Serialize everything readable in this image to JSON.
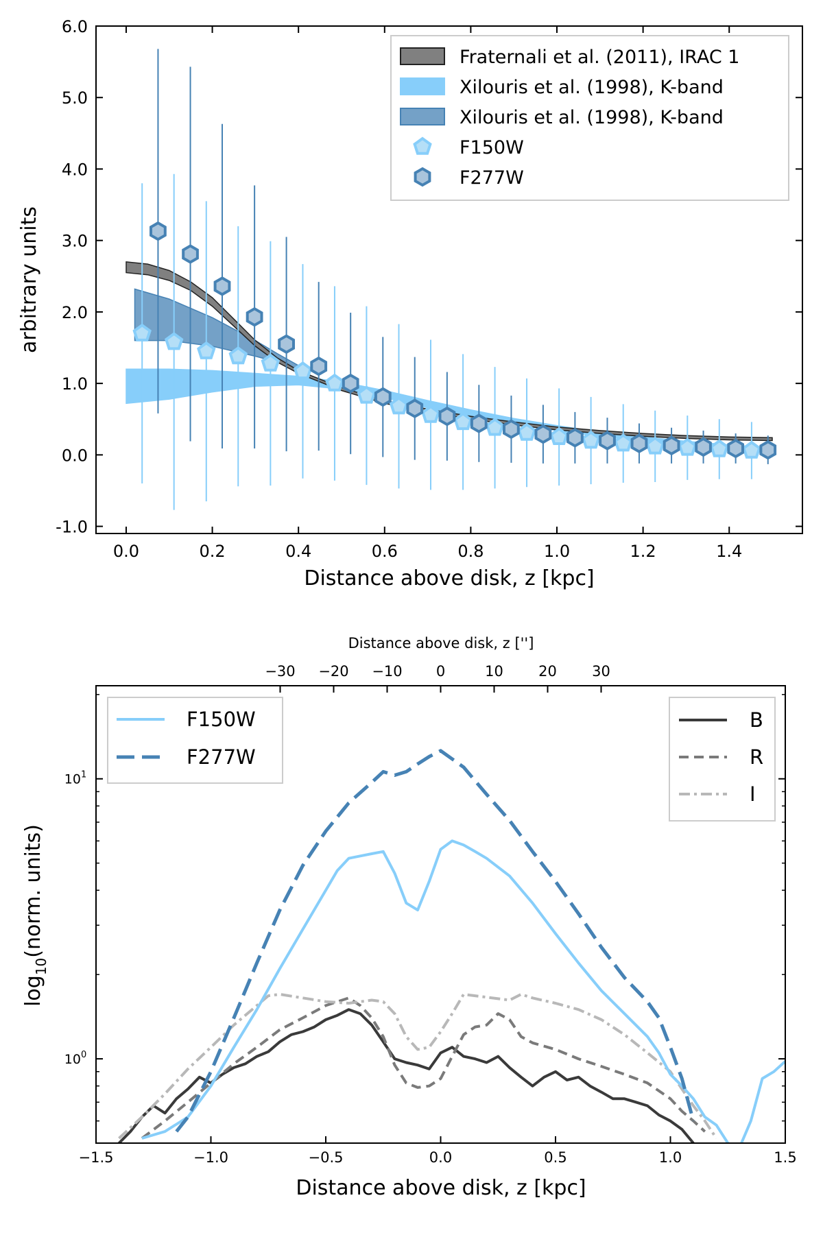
{
  "colors": {
    "light_blue": "#87cefa",
    "mid_blue": "#4682b4",
    "gray_fill": "#808080",
    "b_line": "#3a3a3a",
    "r_line": "#7a7a7a",
    "i_line": "#b8b8b8"
  },
  "chart_data": [
    {
      "type": "line",
      "title": "",
      "xlabel": "Distance above disk, z [kpc]",
      "ylabel": "arbitrary units",
      "xlim": [
        -0.07,
        1.57
      ],
      "ylim": [
        -1.1,
        6.0
      ],
      "x_ticks": [
        0.0,
        0.2,
        0.4,
        0.6,
        0.8,
        1.0,
        1.2,
        1.4
      ],
      "x_tick_labels": [
        "0.0",
        "0.2",
        "0.4",
        "0.6",
        "0.8",
        "1.0",
        "1.2",
        "1.4"
      ],
      "y_ticks": [
        -1.0,
        0.0,
        1.0,
        2.0,
        3.0,
        4.0,
        5.0,
        6.0
      ],
      "y_tick_labels": [
        "-1.0",
        "0.0",
        "1.0",
        "2.0",
        "3.0",
        "4.0",
        "5.0",
        "6.0"
      ],
      "legend_position": "top-right",
      "bands": [
        {
          "name": "Fraternali et al. (2011), IRAC 1",
          "color": "#808080",
          "x": [
            0.0,
            0.05,
            0.1,
            0.15,
            0.2,
            0.25,
            0.3,
            0.35,
            0.4,
            0.5,
            0.6,
            0.7,
            0.8,
            0.9,
            1.0,
            1.1,
            1.2,
            1.3,
            1.4,
            1.5
          ],
          "lower": [
            2.55,
            2.52,
            2.44,
            2.3,
            2.08,
            1.8,
            1.52,
            1.3,
            1.14,
            0.9,
            0.72,
            0.6,
            0.5,
            0.42,
            0.35,
            0.3,
            0.26,
            0.23,
            0.21,
            0.2
          ],
          "upper": [
            2.7,
            2.67,
            2.58,
            2.42,
            2.2,
            1.9,
            1.6,
            1.36,
            1.18,
            0.94,
            0.76,
            0.64,
            0.54,
            0.46,
            0.39,
            0.34,
            0.3,
            0.27,
            0.25,
            0.24
          ]
        },
        {
          "name": "Xilouris et al. (1998), K-band",
          "color": "#87cefa",
          "x": [
            0.0,
            0.1,
            0.2,
            0.3,
            0.4,
            0.5,
            0.6,
            0.7,
            0.8,
            0.9,
            1.0,
            1.1,
            1.2,
            1.3,
            1.4,
            1.5
          ],
          "lower": [
            0.72,
            0.78,
            0.88,
            0.96,
            0.98,
            0.92,
            0.8,
            0.66,
            0.54,
            0.43,
            0.34,
            0.26,
            0.2,
            0.15,
            0.11,
            0.08
          ],
          "upper": [
            1.2,
            1.2,
            1.18,
            1.14,
            1.1,
            1.02,
            0.9,
            0.76,
            0.63,
            0.51,
            0.41,
            0.32,
            0.25,
            0.19,
            0.14,
            0.1
          ]
        },
        {
          "name": "Xilouris et al. (1998), K-band",
          "color": "#4682b4",
          "x": [
            0.02,
            0.1,
            0.2,
            0.3,
            0.35,
            0.4
          ],
          "lower": [
            1.6,
            1.6,
            1.52,
            1.38,
            1.3,
            1.2
          ],
          "upper": [
            2.32,
            2.18,
            1.92,
            1.6,
            1.42,
            1.25
          ]
        }
      ],
      "series": [
        {
          "name": "F150W",
          "marker": "pentagon",
          "color": "#87cefa",
          "x": [
            0.037,
            0.111,
            0.186,
            0.26,
            0.335,
            0.41,
            0.484,
            0.558,
            0.633,
            0.707,
            0.782,
            0.856,
            0.93,
            1.005,
            1.079,
            1.154,
            1.228,
            1.303,
            1.377,
            1.452
          ],
          "y": [
            1.7,
            1.58,
            1.45,
            1.38,
            1.28,
            1.17,
            1.0,
            0.83,
            0.68,
            0.56,
            0.46,
            0.38,
            0.31,
            0.25,
            0.2,
            0.16,
            0.12,
            0.1,
            0.08,
            0.06
          ],
          "err": [
            2.1,
            2.35,
            2.1,
            1.82,
            1.71,
            1.5,
            1.36,
            1.25,
            1.15,
            1.05,
            0.95,
            0.85,
            0.76,
            0.68,
            0.61,
            0.55,
            0.5,
            0.45,
            0.42,
            0.4
          ]
        },
        {
          "name": "F277W",
          "marker": "hexagon",
          "color": "#4682b4",
          "x": [
            0.074,
            0.149,
            0.223,
            0.298,
            0.372,
            0.447,
            0.521,
            0.596,
            0.67,
            0.745,
            0.819,
            0.894,
            0.968,
            1.042,
            1.117,
            1.191,
            1.266,
            1.34,
            1.415,
            1.49
          ],
          "y": [
            3.13,
            2.81,
            2.36,
            1.93,
            1.55,
            1.24,
            1.0,
            0.81,
            0.65,
            0.54,
            0.44,
            0.36,
            0.29,
            0.24,
            0.2,
            0.16,
            0.13,
            0.11,
            0.09,
            0.07
          ],
          "err": [
            2.55,
            2.62,
            2.27,
            1.84,
            1.5,
            1.18,
            0.99,
            0.84,
            0.72,
            0.62,
            0.54,
            0.47,
            0.41,
            0.36,
            0.32,
            0.28,
            0.25,
            0.23,
            0.21,
            0.2
          ]
        }
      ]
    },
    {
      "type": "line",
      "title": "",
      "xlabel": "Distance above disk, z [kpc]",
      "ylabel": "log10(norm. units)",
      "ylabel_main": "log",
      "ylabel_sub": "10",
      "ylabel_tail": "(norm. units)",
      "top_xlabel": "Distance above disk, z ['']",
      "y_scale": "log",
      "xlim": [
        -1.5,
        1.5
      ],
      "ylim": [
        0.5,
        21.5
      ],
      "x_ticks": [
        -1.5,
        -1.0,
        -0.5,
        0.0,
        0.5,
        1.0,
        1.5
      ],
      "x_tick_labels": [
        "−1.5",
        "−1.0",
        "−0.5",
        "0.0",
        "0.5",
        "1.0",
        "1.5"
      ],
      "top_ticks": [
        -30,
        -20,
        -10,
        0,
        10,
        20,
        30
      ],
      "top_tick_labels": [
        "−30",
        "−20",
        "−10",
        "0",
        "10",
        "20",
        "30"
      ],
      "y_ticks": [
        1,
        10
      ],
      "y_tick_main": [
        "10",
        "10"
      ],
      "y_tick_exp": [
        "0",
        "1"
      ],
      "legend_left_position": "top-left",
      "legend_right_position": "top-right",
      "series": [
        {
          "name": "F150W",
          "style": "solid",
          "color": "#87cefa",
          "x": [
            -1.3,
            -1.2,
            -1.1,
            -1.0,
            -0.9,
            -0.8,
            -0.7,
            -0.6,
            -0.5,
            -0.45,
            -0.4,
            -0.35,
            -0.3,
            -0.25,
            -0.2,
            -0.15,
            -0.1,
            -0.05,
            0.0,
            0.05,
            0.1,
            0.15,
            0.2,
            0.3,
            0.4,
            0.5,
            0.6,
            0.7,
            0.8,
            0.9,
            0.95,
            1.0,
            1.05,
            1.1,
            1.15,
            1.2,
            1.25,
            1.3,
            1.35,
            1.4,
            1.45,
            1.5
          ],
          "y": [
            0.52,
            0.55,
            0.62,
            0.8,
            1.1,
            1.5,
            2.1,
            2.9,
            4.0,
            4.7,
            5.2,
            5.3,
            5.4,
            5.5,
            4.6,
            3.6,
            3.4,
            4.3,
            5.6,
            6.0,
            5.8,
            5.5,
            5.2,
            4.5,
            3.6,
            2.8,
            2.2,
            1.75,
            1.45,
            1.2,
            1.05,
            0.88,
            0.8,
            0.72,
            0.62,
            0.58,
            0.5,
            0.48,
            0.6,
            0.85,
            0.9,
            0.98
          ]
        },
        {
          "name": "F277W",
          "style": "dashed",
          "color": "#4682b4",
          "x": [
            -1.15,
            -1.1,
            -1.0,
            -0.9,
            -0.8,
            -0.7,
            -0.6,
            -0.5,
            -0.4,
            -0.3,
            -0.25,
            -0.2,
            -0.15,
            -0.1,
            -0.05,
            0.0,
            0.1,
            0.2,
            0.3,
            0.4,
            0.5,
            0.6,
            0.7,
            0.8,
            0.9,
            0.95,
            1.0,
            1.05,
            1.1
          ],
          "y": [
            0.55,
            0.62,
            0.9,
            1.4,
            2.2,
            3.4,
            4.9,
            6.5,
            8.2,
            9.7,
            10.6,
            10.3,
            10.6,
            11.3,
            12.0,
            12.6,
            11.0,
            8.8,
            7.1,
            5.5,
            4.3,
            3.3,
            2.5,
            1.95,
            1.6,
            1.4,
            1.1,
            0.85,
            0.6
          ]
        },
        {
          "name": "B",
          "style": "solid",
          "color": "#3a3a3a",
          "x": [
            -1.4,
            -1.35,
            -1.3,
            -1.25,
            -1.2,
            -1.15,
            -1.1,
            -1.05,
            -1.0,
            -0.95,
            -0.9,
            -0.85,
            -0.8,
            -0.75,
            -0.7,
            -0.65,
            -0.6,
            -0.55,
            -0.5,
            -0.45,
            -0.4,
            -0.35,
            -0.3,
            -0.25,
            -0.2,
            -0.15,
            -0.1,
            -0.05,
            0.0,
            0.05,
            0.1,
            0.15,
            0.2,
            0.25,
            0.3,
            0.35,
            0.4,
            0.45,
            0.5,
            0.55,
            0.6,
            0.65,
            0.7,
            0.75,
            0.8,
            0.85,
            0.9,
            0.95,
            1.0,
            1.05,
            1.1
          ],
          "y": [
            0.5,
            0.55,
            0.62,
            0.68,
            0.64,
            0.72,
            0.78,
            0.86,
            0.82,
            0.88,
            0.93,
            0.96,
            1.02,
            1.06,
            1.15,
            1.22,
            1.25,
            1.3,
            1.38,
            1.43,
            1.5,
            1.45,
            1.32,
            1.15,
            1.0,
            0.97,
            0.95,
            0.92,
            1.05,
            1.1,
            1.02,
            1.0,
            0.97,
            1.02,
            0.93,
            0.86,
            0.8,
            0.86,
            0.9,
            0.84,
            0.86,
            0.8,
            0.76,
            0.72,
            0.72,
            0.7,
            0.68,
            0.63,
            0.6,
            0.56,
            0.5
          ]
        },
        {
          "name": "R",
          "style": "dashed",
          "color": "#7a7a7a",
          "x": [
            -1.3,
            -1.2,
            -1.1,
            -1.0,
            -0.9,
            -0.8,
            -0.7,
            -0.6,
            -0.5,
            -0.4,
            -0.35,
            -0.3,
            -0.25,
            -0.2,
            -0.15,
            -0.1,
            -0.05,
            0.0,
            0.05,
            0.1,
            0.15,
            0.2,
            0.25,
            0.3,
            0.35,
            0.4,
            0.5,
            0.6,
            0.7,
            0.8,
            0.9,
            1.0,
            1.05,
            1.1,
            1.15
          ],
          "y": [
            0.52,
            0.6,
            0.7,
            0.82,
            0.96,
            1.1,
            1.27,
            1.4,
            1.55,
            1.65,
            1.55,
            1.4,
            1.2,
            0.95,
            0.82,
            0.79,
            0.8,
            0.85,
            1.02,
            1.22,
            1.3,
            1.32,
            1.45,
            1.38,
            1.2,
            1.14,
            1.08,
            1.0,
            0.94,
            0.88,
            0.82,
            0.72,
            0.65,
            0.6,
            0.55
          ]
        },
        {
          "name": "I",
          "style": "dashdot",
          "color": "#b8b8b8",
          "x": [
            -1.4,
            -1.3,
            -1.2,
            -1.1,
            -1.0,
            -0.9,
            -0.8,
            -0.75,
            -0.7,
            -0.6,
            -0.5,
            -0.4,
            -0.3,
            -0.25,
            -0.2,
            -0.15,
            -0.1,
            -0.05,
            0.0,
            0.05,
            0.1,
            0.3,
            0.35,
            0.4,
            0.5,
            0.6,
            0.7,
            0.8,
            0.9,
            1.0,
            1.05,
            1.1,
            1.15,
            1.2
          ],
          "y": [
            0.52,
            0.62,
            0.75,
            0.92,
            1.1,
            1.32,
            1.55,
            1.68,
            1.7,
            1.65,
            1.6,
            1.58,
            1.62,
            1.6,
            1.45,
            1.2,
            1.08,
            1.1,
            1.25,
            1.45,
            1.7,
            1.62,
            1.7,
            1.65,
            1.58,
            1.5,
            1.38,
            1.22,
            1.05,
            0.9,
            0.78,
            0.68,
            0.6,
            0.52
          ]
        }
      ]
    }
  ]
}
